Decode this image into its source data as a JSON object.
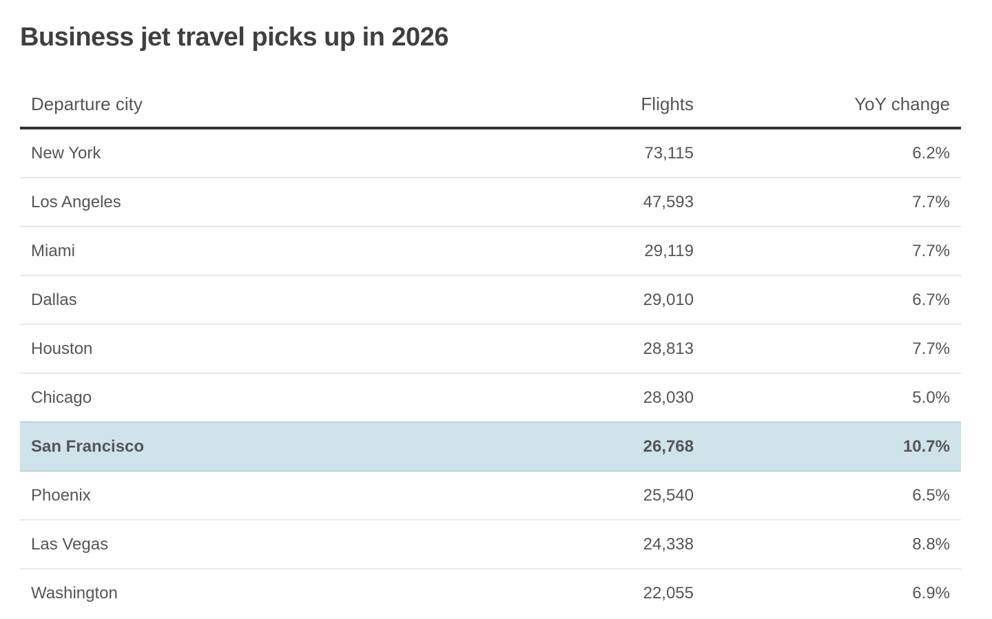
{
  "chart_data": {
    "type": "table",
    "title": "Business jet travel picks up in 2026",
    "columns": [
      "Departure city",
      "Flights",
      "YoY change"
    ],
    "highlight_colour": "#cfe3ea",
    "highlighted_row": "San Francisco",
    "rows": [
      {
        "city": "New York",
        "flights": "73,115",
        "yoy": "6.2%"
      },
      {
        "city": "Los Angeles",
        "flights": "47,593",
        "yoy": "7.7%"
      },
      {
        "city": "Miami",
        "flights": "29,119",
        "yoy": "7.7%"
      },
      {
        "city": "Dallas",
        "flights": "29,010",
        "yoy": "6.7%"
      },
      {
        "city": "Houston",
        "flights": "28,813",
        "yoy": "7.7%"
      },
      {
        "city": "Chicago",
        "flights": "28,030",
        "yoy": "5.0%"
      },
      {
        "city": "San Francisco",
        "flights": "26,768",
        "yoy": "10.7%"
      },
      {
        "city": "Phoenix",
        "flights": "25,540",
        "yoy": "6.5%"
      },
      {
        "city": "Las Vegas",
        "flights": "24,338",
        "yoy": "8.8%"
      },
      {
        "city": "Washington",
        "flights": "22,055",
        "yoy": "6.9%"
      }
    ]
  }
}
